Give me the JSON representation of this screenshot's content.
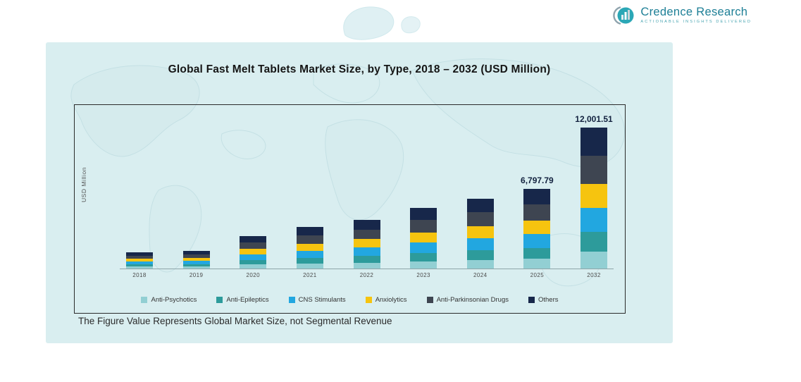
{
  "header": {
    "brand": "Credence Research",
    "tagline": "Actionable Insights Delivered"
  },
  "colors": {
    "panel_bg": "#d9eef0",
    "brand_teal": "#1d7f96",
    "annotation_text": "#13223f",
    "map_line": "#c2dfe3"
  },
  "footnote": "The Figure Value Represents Global Market Size, not Segmental Revenue",
  "chart_data": {
    "type": "bar",
    "stacked": true,
    "title": "Global Fast Melt Tablets Market Size, by Type, 2018 – 2032 (USD Million)",
    "xlabel": "",
    "ylabel": "USD Million",
    "ylim": [
      0,
      12500
    ],
    "grid": false,
    "legend_position": "bottom",
    "categories": [
      "2018",
      "2019",
      "2020",
      "2021",
      "2022",
      "2023",
      "2024",
      "2025",
      "2032"
    ],
    "series": [
      {
        "name": "Anti-Psychotics",
        "color": "#92cfd3",
        "values": [
          166,
          180,
          336,
          422,
          500,
          619,
          718,
          815.73,
          1440.18
        ]
      },
      {
        "name": "Anti-Epileptics",
        "color": "#2d9b9b",
        "values": [
          193,
          210,
          392,
          493,
          584,
          722,
          837,
          951.69,
          1680.21
        ]
      },
      {
        "name": "CNS Stimulants",
        "color": "#22a7e0",
        "values": [
          235,
          255,
          476,
          598,
          709,
          877,
          1017,
          1155.62,
          2040.26
        ]
      },
      {
        "name": "Anxiolytics",
        "color": "#f6c40f",
        "values": [
          235,
          255,
          476,
          598,
          709,
          877,
          1017,
          1155.62,
          2040.26
        ]
      },
      {
        "name": "Anti-Parkinsonian Drugs",
        "color": "#3e4551",
        "values": [
          276,
          300,
          560,
          704,
          834,
          1032,
          1196,
          1359.56,
          2400.3
        ]
      },
      {
        "name": "Others",
        "color": "#17274a",
        "values": [
          276,
          300,
          560,
          704,
          834,
          1032,
          1196,
          1359.57,
          2400.3
        ]
      }
    ],
    "annotations": [
      {
        "category": "2025",
        "label": "6,797.79",
        "value": 6797.79
      },
      {
        "category": "2032",
        "label": "12,001.51",
        "value": 12001.51
      }
    ]
  }
}
